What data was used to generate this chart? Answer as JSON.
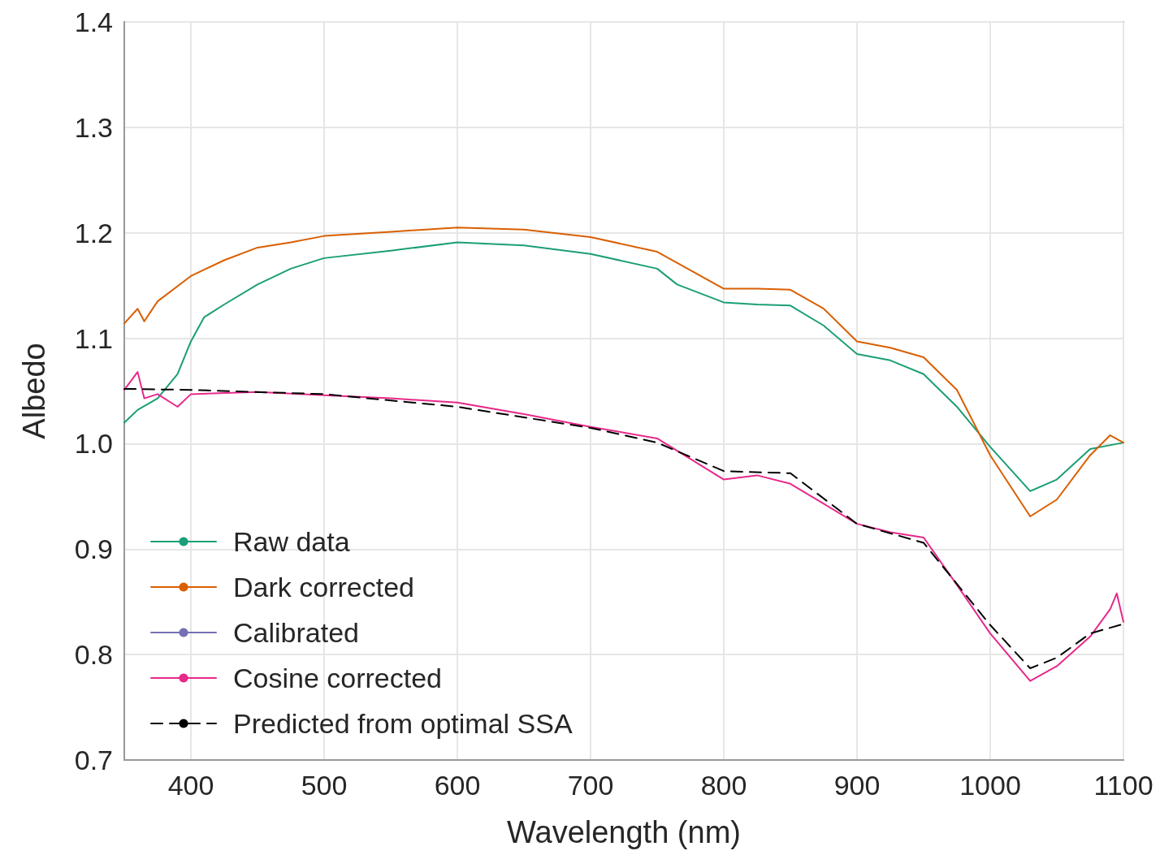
{
  "chart_data": {
    "type": "line",
    "xlabel": "Wavelength (nm)",
    "ylabel": "Albedo",
    "xlim": [
      350,
      1100
    ],
    "xticks": [
      400,
      500,
      600,
      700,
      800,
      900,
      1000,
      1100
    ],
    "ylim": [
      0.7,
      1.4
    ],
    "yticks": [
      {
        "value": 0.7,
        "label": "0.7"
      },
      {
        "value": 0.8,
        "label": "0.8"
      },
      {
        "value": 0.9,
        "label": "0.9"
      },
      {
        "value": 1,
        "label": "1.0"
      },
      {
        "value": 1.1,
        "label": "1.1"
      },
      {
        "value": 1.2,
        "label": "1.2"
      },
      {
        "value": 1.3,
        "label": "1.3"
      },
      {
        "value": 1.4,
        "label": "1.4"
      }
    ],
    "grid": true,
    "legend": "bottom left",
    "marker": "none",
    "series": [
      {
        "name": "Raw data",
        "color": "#1b9e77",
        "line_style": "solid",
        "x": [
          350,
          360,
          375,
          390,
          400,
          410,
          425,
          450,
          475,
          500,
          550,
          600,
          650,
          700,
          750,
          765,
          800,
          825,
          850,
          875,
          900,
          925,
          950,
          975,
          1000,
          1030,
          1050,
          1075,
          1100
        ],
        "values": [
          1.02,
          1.032,
          1.043,
          1.066,
          1.097,
          1.12,
          1.132,
          1.151,
          1.166,
          1.176,
          1.183,
          1.191,
          1.188,
          1.18,
          1.166,
          1.151,
          1.134,
          1.132,
          1.131,
          1.112,
          1.085,
          1.079,
          1.066,
          1.035,
          0.997,
          0.955,
          0.966,
          0.995,
          1.001
        ]
      },
      {
        "name": "Dark corrected",
        "color": "#d95f02",
        "line_style": "solid",
        "x": [
          350,
          360,
          365,
          375,
          400,
          425,
          450,
          475,
          500,
          550,
          600,
          650,
          700,
          750,
          800,
          825,
          850,
          875,
          900,
          925,
          950,
          975,
          1000,
          1030,
          1050,
          1075,
          1090,
          1100
        ],
        "values": [
          1.114,
          1.128,
          1.116,
          1.135,
          1.159,
          1.174,
          1.186,
          1.191,
          1.197,
          1.201,
          1.205,
          1.203,
          1.196,
          1.182,
          1.147,
          1.147,
          1.146,
          1.128,
          1.097,
          1.091,
          1.082,
          1.051,
          0.989,
          0.931,
          0.947,
          0.989,
          1.008,
          1.001
        ]
      },
      {
        "name": "Calibrated",
        "color": "#7570b3",
        "line_style": "solid"
      },
      {
        "name": "Cosine corrected",
        "color": "#e7298a",
        "line_style": "solid",
        "x": [
          350,
          360,
          365,
          375,
          390,
          400,
          450,
          500,
          550,
          600,
          650,
          700,
          750,
          800,
          825,
          850,
          875,
          900,
          925,
          950,
          975,
          1000,
          1030,
          1050,
          1075,
          1090,
          1095,
          1100
        ],
        "values": [
          1.051,
          1.068,
          1.043,
          1.047,
          1.035,
          1.047,
          1.049,
          1.046,
          1.043,
          1.039,
          1.028,
          1.016,
          1.005,
          0.966,
          0.97,
          0.962,
          0.943,
          0.924,
          0.916,
          0.911,
          0.866,
          0.82,
          0.775,
          0.789,
          0.817,
          0.843,
          0.858,
          0.831
        ]
      },
      {
        "name": "Predicted from optimal SSA",
        "color": "#000000",
        "line_style": "dashed",
        "x": [
          350,
          400,
          500,
          600,
          700,
          750,
          800,
          850,
          900,
          950,
          1000,
          1030,
          1050,
          1075,
          1100
        ],
        "values": [
          1.052,
          1.051,
          1.047,
          1.035,
          1.015,
          1.001,
          0.974,
          0.972,
          0.924,
          0.906,
          0.828,
          0.787,
          0.797,
          0.82,
          0.829
        ]
      }
    ]
  }
}
